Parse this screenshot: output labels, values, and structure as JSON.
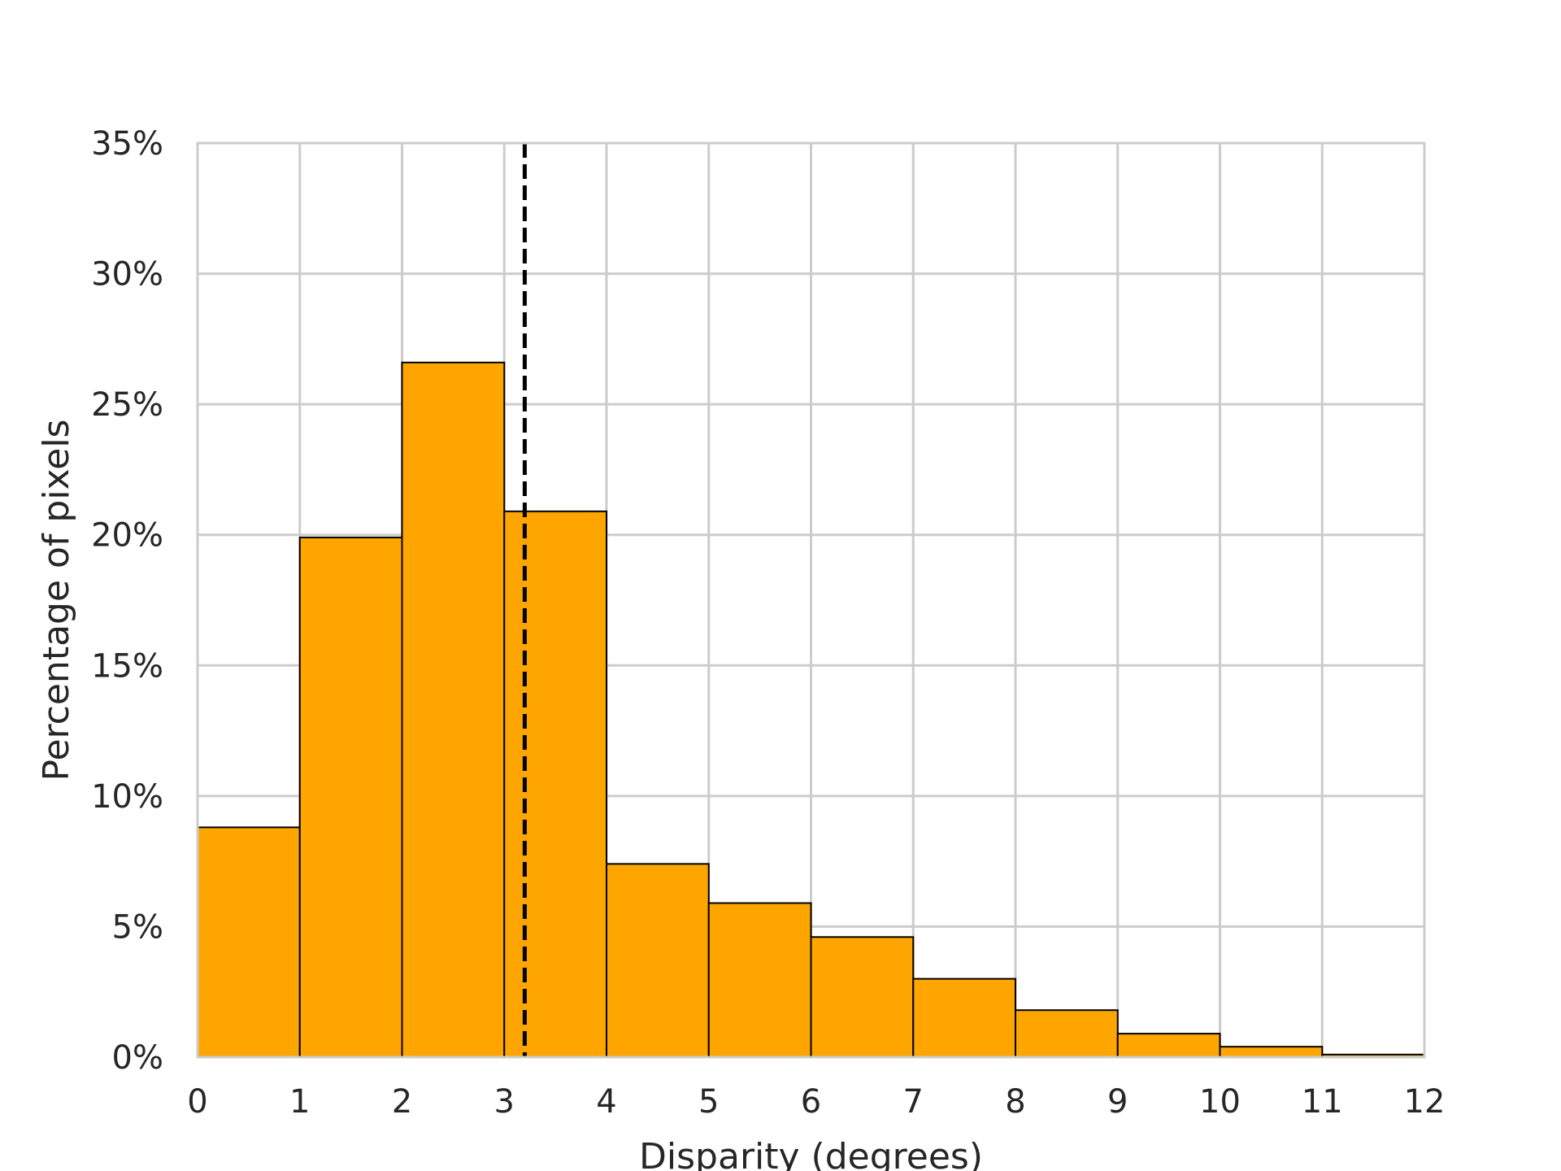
{
  "chart_data": {
    "type": "bar",
    "subtype": "histogram",
    "title": "",
    "xlabel": "Disparity (degrees)",
    "ylabel": "Percentage of pixels",
    "xlim": [
      0,
      12
    ],
    "ylim": [
      0,
      35
    ],
    "x_ticks": [
      "0",
      "1",
      "2",
      "3",
      "4",
      "5",
      "6",
      "7",
      "8",
      "9",
      "10",
      "11",
      "12"
    ],
    "y_ticks": [
      "0%",
      "5%",
      "10%",
      "15%",
      "20%",
      "25%",
      "30%",
      "35%"
    ],
    "bins": [
      {
        "x0": 0,
        "x1": 1,
        "value": 8.8
      },
      {
        "x0": 1,
        "x1": 2,
        "value": 19.9
      },
      {
        "x0": 2,
        "x1": 3,
        "value": 26.6
      },
      {
        "x0": 3,
        "x1": 4,
        "value": 20.9
      },
      {
        "x0": 4,
        "x1": 5,
        "value": 7.4
      },
      {
        "x0": 5,
        "x1": 6,
        "value": 5.9
      },
      {
        "x0": 6,
        "x1": 7,
        "value": 4.6
      },
      {
        "x0": 7,
        "x1": 8,
        "value": 3.0
      },
      {
        "x0": 8,
        "x1": 9,
        "value": 1.8
      },
      {
        "x0": 9,
        "x1": 10,
        "value": 0.9
      },
      {
        "x0": 10,
        "x1": 11,
        "value": 0.4
      },
      {
        "x0": 11,
        "x1": 12,
        "value": 0.1
      }
    ],
    "reference_line": {
      "x": 3.2,
      "style": "dashed",
      "color": "#000000"
    },
    "bar_color": "#FFA500",
    "bar_edge_color": "#000000",
    "grid": true,
    "grid_color": "#CCCCCC"
  }
}
